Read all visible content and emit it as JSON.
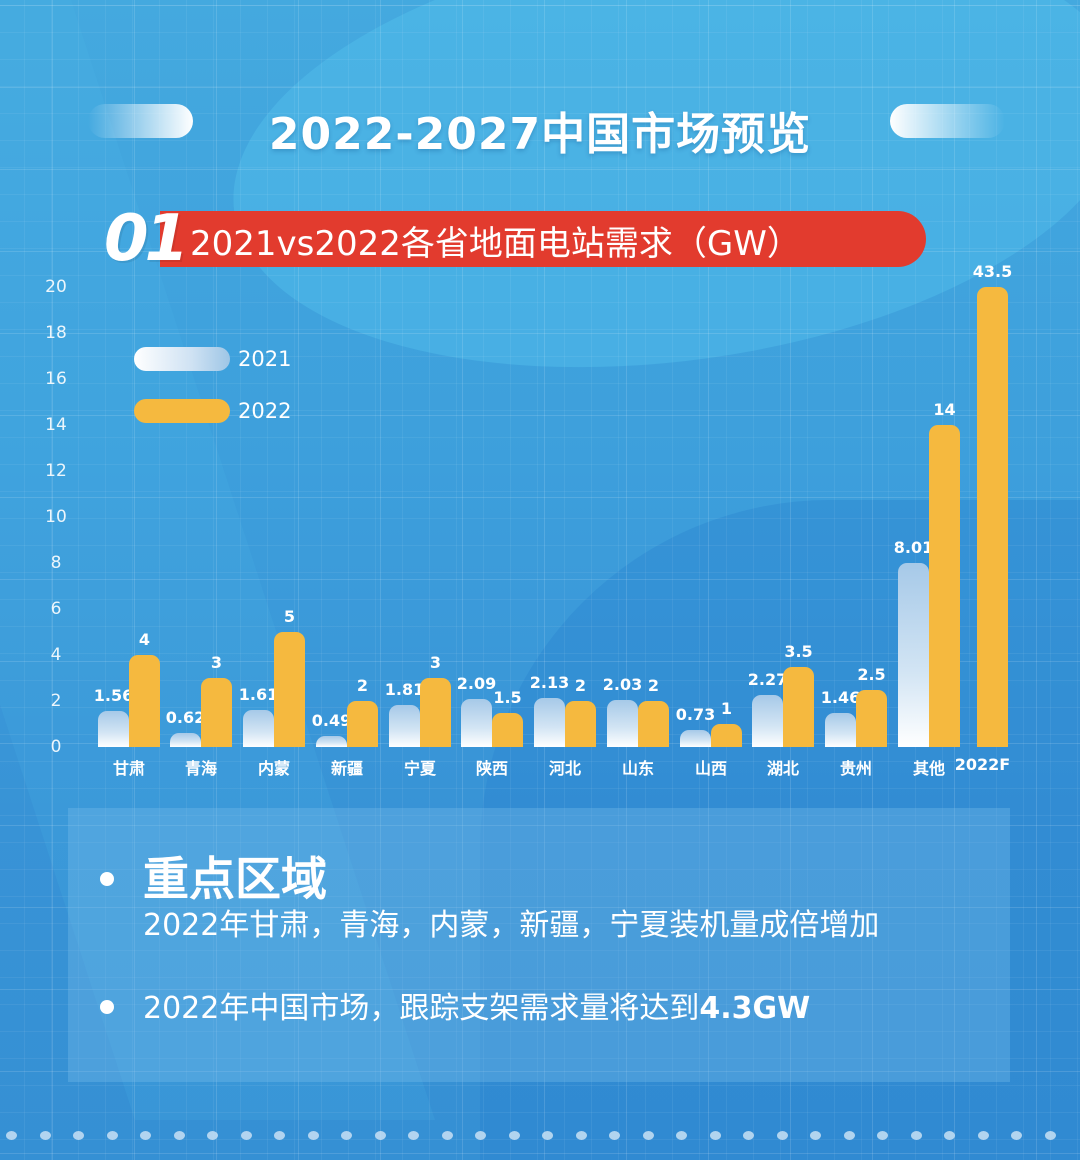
{
  "header": {
    "title": "2022-2027中国市场预览"
  },
  "section": {
    "number": "01",
    "title": "2021vs2022各省地面电站需求（GW）"
  },
  "legend": {
    "items": [
      {
        "label": "2021",
        "color": "#ffffff"
      },
      {
        "label": "2022",
        "color": "#f5b93f"
      }
    ]
  },
  "axis": {
    "y_ticks": [
      "0",
      "2",
      "4",
      "6",
      "8",
      "10",
      "12",
      "14",
      "16",
      "18",
      "20"
    ]
  },
  "chart_data": {
    "type": "bar",
    "title": "2021vs2022各省地面电站需求（GW）",
    "xlabel": "",
    "ylabel": "GW",
    "ylim": [
      0,
      20
    ],
    "grid": true,
    "legend_position": "upper-left",
    "categories": [
      "甘肃",
      "青海",
      "内蒙",
      "新疆",
      "宁夏",
      "陕西",
      "河北",
      "山东",
      "山西",
      "湖北",
      "贵州",
      "其他",
      "2022F"
    ],
    "series": [
      {
        "name": "2021",
        "values": [
          1.56,
          0.62,
          1.61,
          0.49,
          1.81,
          2.09,
          2.13,
          2.03,
          0.73,
          2.27,
          1.46,
          8.01,
          null
        ]
      },
      {
        "name": "2022",
        "values": [
          4,
          3,
          5,
          2,
          3,
          1.5,
          2,
          2,
          1,
          3.5,
          2.5,
          14,
          43.5
        ]
      }
    ],
    "value_labels_2021": [
      "1.56",
      "0.62",
      "1.61",
      "0.49",
      "1.81",
      "2.09",
      "2.13",
      "2.03",
      "0.73",
      "2.27",
      "1.46",
      "8.01",
      ""
    ],
    "value_labels_2022": [
      "4",
      "3",
      "5",
      "2",
      "3",
      "1.5",
      "2",
      "2",
      "1",
      "3.5",
      "2.5",
      "14",
      "43.5"
    ],
    "annotations": [
      "2022F bar truncated at axis max 20, labeled 43.5"
    ]
  },
  "info": {
    "heading": "重点区域",
    "line1": "2022年甘肃，青海，内蒙，新疆，宁夏装机量成倍增加",
    "line2_prefix": "2022年中国市场，跟踪支架需求量将达到",
    "line2_highlight": "4.3GW"
  },
  "colors": {
    "background": "#3a9ad8",
    "banner_red": "#e23b2e",
    "bar_2022": "#f5b93f",
    "bar_2021_top": "#a6c9e8"
  }
}
